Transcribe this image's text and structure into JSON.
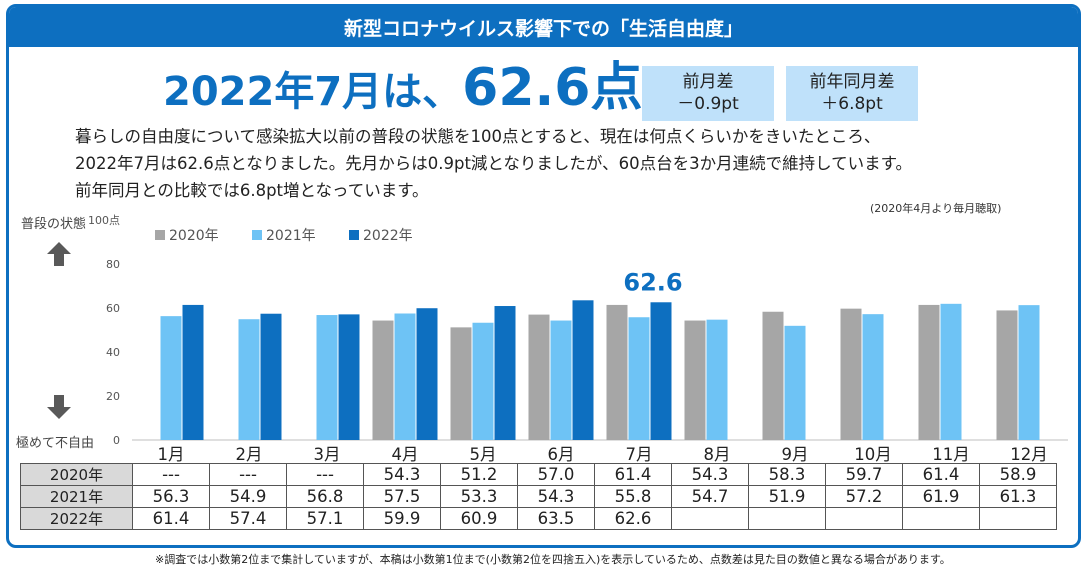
{
  "header": {
    "title": "新型コロナウイルス影響下での「生活自由度」"
  },
  "headline": {
    "prefix": "2022年7月は、",
    "value": "62.6",
    "suffix": "点"
  },
  "diff_boxes": [
    {
      "label": "前月差",
      "value": "－0.9pt"
    },
    {
      "label": "前年同月差",
      "value": "＋6.8pt"
    }
  ],
  "description": [
    "暮らしの自由度について感染拡大以前の普段の状態を100点とすると、現在は何点くらいかをきいたところ、",
    "2022年7月は62.6点となりました。先月からは0.9pt減となりましたが、60点台を3か月連続で維持しています。",
    "前年同月との比較では6.8pt増となっています。"
  ],
  "survey_note": "(2020年4月より毎月聴取)",
  "axis_labels": {
    "top": "普段の状態",
    "bottom": "極めて不自由"
  },
  "colors": {
    "s2020": "#a6a6a6",
    "s2021": "#6ec3f5",
    "s2022": "#0d6fc0",
    "accent": "#0d6fc0"
  },
  "chart_data": {
    "type": "bar",
    "title": "新型コロナウイルス影響下での「生活自由度」",
    "categories": [
      "1月",
      "2月",
      "3月",
      "4月",
      "5月",
      "6月",
      "7月",
      "8月",
      "9月",
      "10月",
      "11月",
      "12月"
    ],
    "series": [
      {
        "name": "2020年",
        "values": [
          null,
          null,
          null,
          54.3,
          51.2,
          57.0,
          61.4,
          54.3,
          58.3,
          59.7,
          61.4,
          58.9
        ]
      },
      {
        "name": "2021年",
        "values": [
          56.3,
          54.9,
          56.8,
          57.5,
          53.3,
          54.3,
          55.8,
          54.7,
          51.9,
          57.2,
          61.9,
          61.3
        ]
      },
      {
        "name": "2022年",
        "values": [
          61.4,
          57.4,
          57.1,
          59.9,
          60.9,
          63.5,
          62.6,
          null,
          null,
          null,
          null,
          null
        ]
      }
    ],
    "yticks": [
      "0",
      "20",
      "40",
      "60",
      "80",
      "100点"
    ],
    "ylim": [
      0,
      100
    ],
    "highlight": {
      "label": "62.6",
      "category": "7月",
      "series": "2022年"
    },
    "legend": "top-left",
    "grid": false
  },
  "table": {
    "rows": [
      {
        "label": "2020年",
        "cells": [
          "---",
          "---",
          "---",
          "54.3",
          "51.2",
          "57.0",
          "61.4",
          "54.3",
          "58.3",
          "59.7",
          "61.4",
          "58.9"
        ]
      },
      {
        "label": "2021年",
        "cells": [
          "56.3",
          "54.9",
          "56.8",
          "57.5",
          "53.3",
          "54.3",
          "55.8",
          "54.7",
          "51.9",
          "57.2",
          "61.9",
          "61.3"
        ]
      },
      {
        "label": "2022年",
        "cells": [
          "61.4",
          "57.4",
          "57.1",
          "59.9",
          "60.9",
          "63.5",
          "62.6",
          "",
          "",
          "",
          "",
          ""
        ]
      }
    ]
  },
  "footnote": "※調査では小数第2位まで集計していますが、本稿は小数第1位まで(小数第2位を四捨五入)を表示しているため、点数差は見た目の数値と異なる場合があります。"
}
